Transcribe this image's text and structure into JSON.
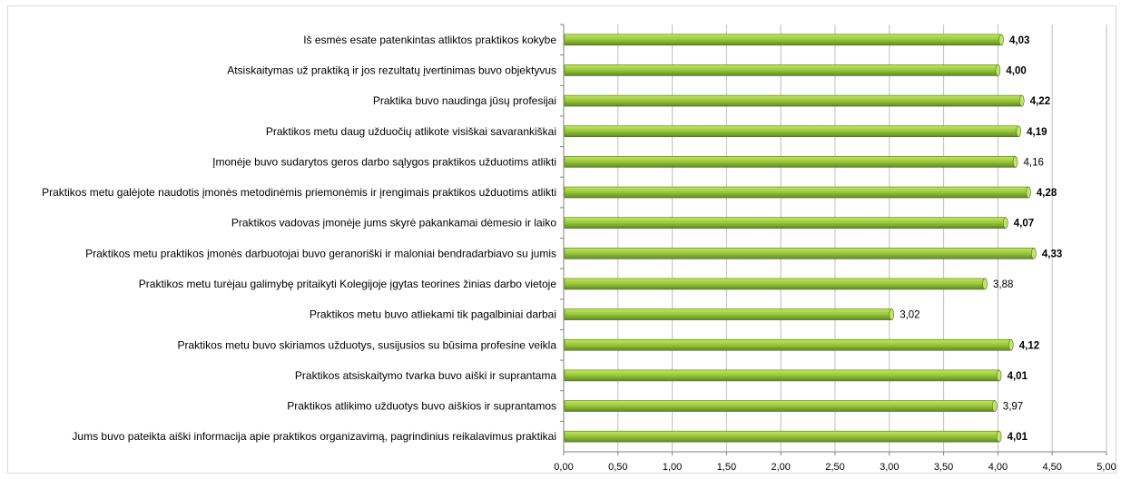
{
  "chart_data": {
    "type": "bar",
    "orientation": "horizontal",
    "categories": [
      "Iš esmės esate patenkintas atliktos praktikos kokybe",
      "Atsiskaitymas už praktiką ir jos rezultatų įvertinimas buvo objektyvus",
      "Praktika buvo naudinga jūsų profesijai",
      "Praktikos metu daug užduočių atlikote  visiškai savarankiškai",
      "Įmonėje buvo sudarytos geros darbo sąlygos praktikos užduotims atlikti",
      "Praktikos metu galėjote naudotis įmonės metodinėmis priemonėmis ir įrengimais praktikos  užduotims atlikti",
      "Praktikos vadovas įmonėje jums skyrė pakankamai dėmesio ir laiko",
      "Praktikos metu praktikos įmonės darbuotojai buvo geranoriški ir maloniai bendradarbiavo su jumis",
      "Praktikos metu turėjau galimybę pritaikyti Kolegijoje įgytas teorines žinias darbo vietoje",
      "Praktikos metu buvo atliekami tik pagalbiniai darbai",
      "Praktikos metu buvo skiriamos užduotys, susijusios su būsima profesine veikla",
      "Praktikos atsiskaitymo tvarka buvo aiški ir suprantama",
      "Praktikos atlikimo užduotys buvo aiškios ir suprantamos",
      "Jums buvo pateikta aiški informacija apie praktikos organizavimą, pagrindinius reikalavimus praktikai"
    ],
    "values": [
      4.03,
      4.0,
      4.22,
      4.19,
      4.16,
      4.28,
      4.07,
      4.33,
      3.88,
      3.02,
      4.12,
      4.01,
      3.97,
      4.01
    ],
    "value_labels": [
      "4,03",
      "4,00",
      "4,22",
      "4,19",
      "4,16",
      "4,28",
      "4,07",
      "4,33",
      "3,88",
      "3,02",
      "4,12",
      "4,01",
      "3,97",
      "4,01"
    ],
    "label_bold": [
      true,
      true,
      true,
      true,
      false,
      true,
      true,
      true,
      false,
      false,
      true,
      true,
      false,
      true
    ],
    "x_ticks": [
      "0,00",
      "0,50",
      "1,00",
      "1,50",
      "2,00",
      "2,50",
      "3,00",
      "3,50",
      "4,00",
      "4,50",
      "5,00"
    ],
    "xlim": [
      0,
      5
    ],
    "grid": true,
    "legend": "none",
    "title": "",
    "xlabel": "",
    "ylabel": "",
    "colors": {
      "bar_light": "#c4e36a",
      "bar_mid": "#9ccb3b",
      "bar_dark": "#5f8a1d",
      "bar_edge": "#4e7415",
      "grid": "#bfbfbf",
      "axis": "#808080"
    }
  }
}
